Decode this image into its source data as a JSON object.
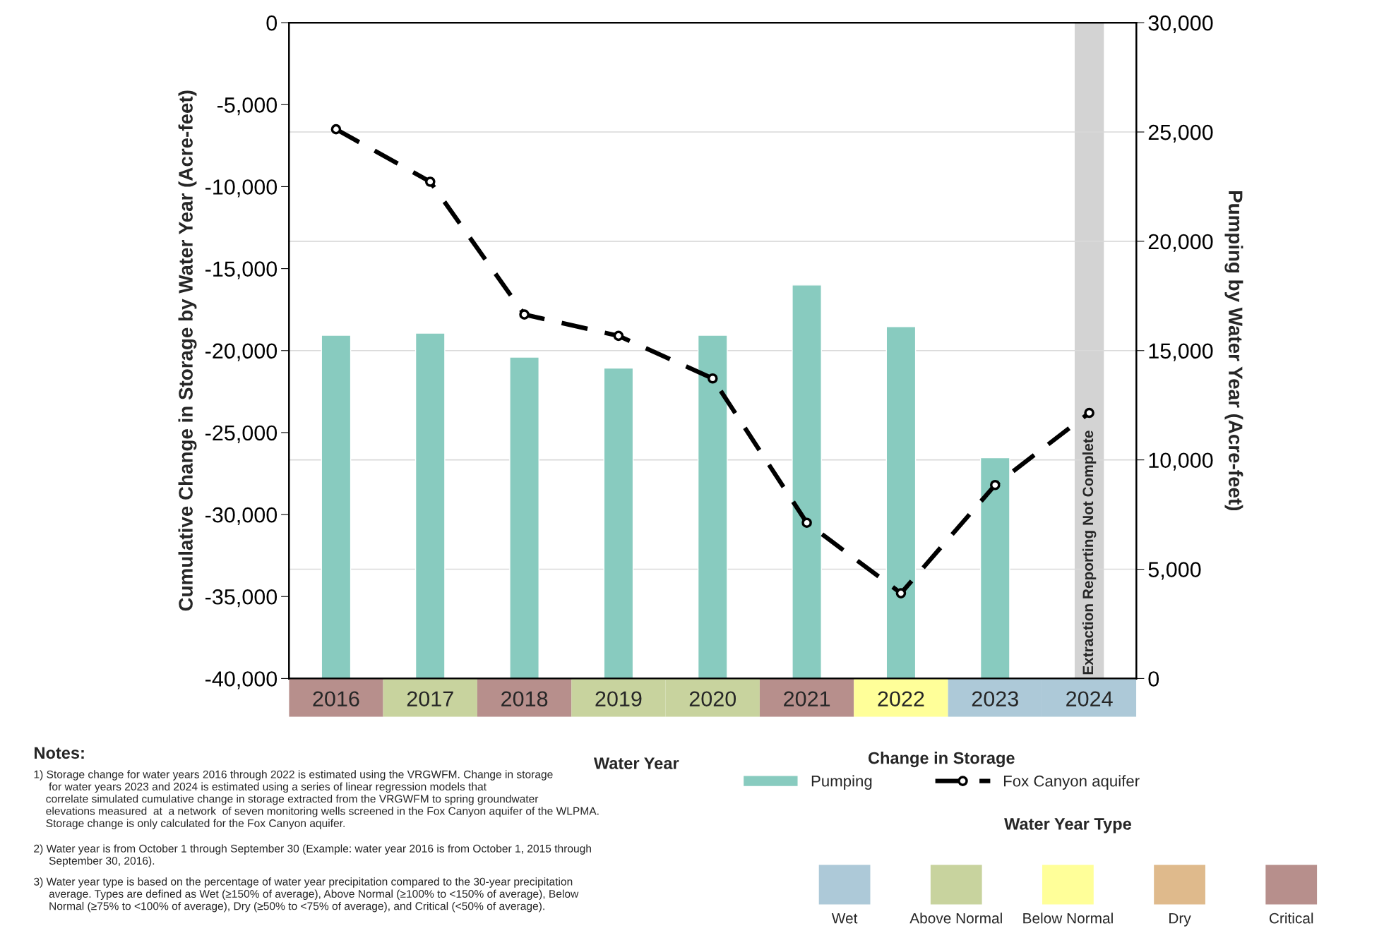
{
  "chart_data": [
    {
      "type": "bar",
      "categories": [
        "2016",
        "2017",
        "2018",
        "2019",
        "2020",
        "2021",
        "2022",
        "2023",
        "2024"
      ],
      "series": [
        {
          "name": "Pumping",
          "type": "bar",
          "axis": "y2",
          "color": "#88cbbf",
          "values": [
            15700,
            15800,
            14700,
            14200,
            15700,
            18000,
            16100,
            10100,
            null
          ]
        },
        {
          "name": "Fox Canyon aquifer",
          "type": "line",
          "color": "#000000",
          "line_style": "dashed",
          "values": [
            -6500,
            -9700,
            -17800,
            -19100,
            -21700,
            -30500,
            -34800,
            -28200,
            -23800
          ]
        }
      ],
      "marker": "circle",
      "xlabel": "Water Year",
      "ylabel": "Cumulative Change in Storage by Water Year (Acre-feet)",
      "y2label": "Pumping by Water Year (Acre-feet)",
      "legend_title": "Change in Storage",
      "legend": "bottom",
      "grid": true,
      "ylim": [
        -40000,
        0
      ],
      "yticks": [
        {
          "value": -40000,
          "label": "-40,000"
        },
        {
          "value": -35000,
          "label": "-35,000"
        },
        {
          "value": -30000,
          "label": "-30,000"
        },
        {
          "value": -25000,
          "label": "-25,000"
        },
        {
          "value": -20000,
          "label": "-20,000"
        },
        {
          "value": -15000,
          "label": "-15,000"
        },
        {
          "value": -10000,
          "label": "-10,000"
        },
        {
          "value": -5000,
          "label": "-5,000"
        },
        0
      ],
      "y2lim": [
        0,
        30000
      ],
      "y2ticks": [
        0,
        {
          "value": 5000,
          "label": "5,000"
        },
        {
          "value": 10000,
          "label": "10,000"
        },
        {
          "value": 15000,
          "label": "15,000"
        },
        {
          "value": 20000,
          "label": "20,000"
        },
        {
          "value": 25000,
          "label": "25,000"
        },
        {
          "value": 30000,
          "label": "30,000"
        }
      ],
      "bands": [
        {
          "axis": "x",
          "from": "2024",
          "to": "2024",
          "color": "#d3d3d3",
          "label": "Extraction Reporting Not Complete"
        }
      ],
      "annotations": [
        "Notes:",
        "1) Storage change for water years 2016 through 2022 is estimated using the VRGWFM. Change in storage\n     for water years 2023 and 2024 is estimated using a series of linear regression models that\n    correlate simulated cumulative change in storage extracted from the VRGWFM to spring groundwater\n    elevations measured  at  a network  of seven monitoring wells screened in the Fox Canyon aquifer of the WLPMA.\n    Storage change is only calculated for the Fox Canyon aquifer.",
        "2) Water year is from October 1 through September 30 (Example: water year 2016 is from October 1, 2015 through\n     September 30, 2016).",
        "3) Water year type is based on the percentage of water year precipitation compared to the 30-year precipitation\n     average. Types are defined as Wet (≥150% of average), Above Normal (≥100% to <150% of average), Below\n     Normal (≥75% to <100% of average), Dry (≥50% to <75% of average), and Critical (<50% of average)."
      ]
    },
    {
      "type": "other",
      "colors": [
        "#b78f8c",
        "#c8d39e",
        "#b78f8c",
        "#c8d39e",
        "#c8d39e",
        "#b78f8c",
        "#ffff99",
        "#adc9d8",
        "#adc9d8"
      ]
    },
    {
      "type": "other",
      "legend_title": "Water Year Type",
      "categories": [
        "Wet",
        "Above Normal",
        "Below Normal",
        "Dry",
        "Critical"
      ],
      "colors": [
        "#adc9d8",
        "#c8d39e",
        "#ffff99",
        "#dfba8c",
        "#b78f8c"
      ]
    }
  ]
}
